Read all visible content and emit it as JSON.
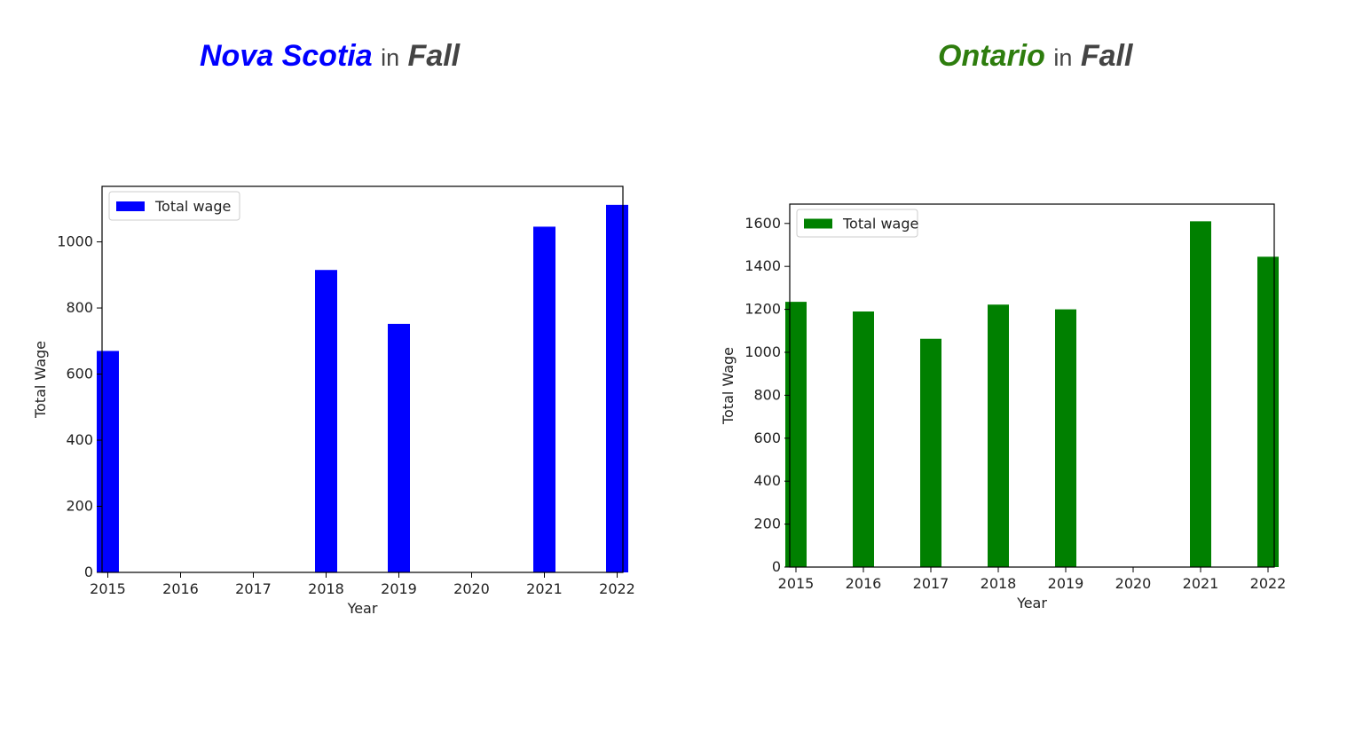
{
  "panels": [
    {
      "heading": {
        "place": "Nova Scotia",
        "joiner": "in",
        "season": "Fall",
        "place_color": "#0000ff"
      }
    },
    {
      "heading": {
        "place": "Ontario",
        "joiner": "in",
        "season": "Fall",
        "place_color": "#2e7d0e"
      }
    }
  ],
  "chart_data": [
    {
      "type": "bar",
      "categories": [
        "2015",
        "2016",
        "2017",
        "2018",
        "2019",
        "2020",
        "2021",
        "2022"
      ],
      "series": [
        {
          "name": "Total wage",
          "values": [
            670,
            0,
            0,
            915,
            752,
            0,
            1046,
            1112
          ],
          "color": "#0000ff"
        }
      ],
      "xlabel": "Year",
      "ylabel": "Total Wage",
      "yticks": [
        0,
        200,
        400,
        600,
        800,
        1000
      ],
      "ylim": [
        0,
        1168
      ],
      "grid": false,
      "legend": "top-left"
    },
    {
      "type": "bar",
      "categories": [
        "2015",
        "2016",
        "2017",
        "2018",
        "2019",
        "2020",
        "2021",
        "2022"
      ],
      "series": [
        {
          "name": "Total wage",
          "values": [
            1235,
            1190,
            1063,
            1222,
            1200,
            0,
            1610,
            1445
          ],
          "color": "#008000"
        }
      ],
      "xlabel": "Year",
      "ylabel": "Total Wage",
      "yticks": [
        0,
        200,
        400,
        600,
        800,
        1000,
        1200,
        1400,
        1600
      ],
      "ylim": [
        0,
        1690
      ],
      "grid": false,
      "legend": "top-left"
    }
  ]
}
